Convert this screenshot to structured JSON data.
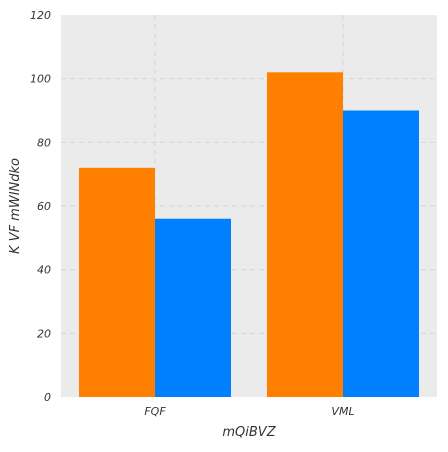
{
  "chart_data": {
    "type": "bar",
    "title": "",
    "xlabel": "mQiBVZ",
    "ylabel": "K VF mWINdko",
    "categories": [
      "FQF",
      "VML"
    ],
    "series": [
      {
        "values": [
          72,
          102
        ],
        "color": "#ff7f00"
      },
      {
        "values": [
          56,
          90
        ],
        "color": "#0080ff"
      }
    ],
    "ylim": [
      0,
      120
    ],
    "yticks": [
      0,
      20,
      40,
      60,
      80,
      100,
      120
    ],
    "grid": true,
    "legend": "none"
  },
  "colors": {
    "plot_background": "#ebebeb",
    "grid": "#d6d6d6"
  }
}
